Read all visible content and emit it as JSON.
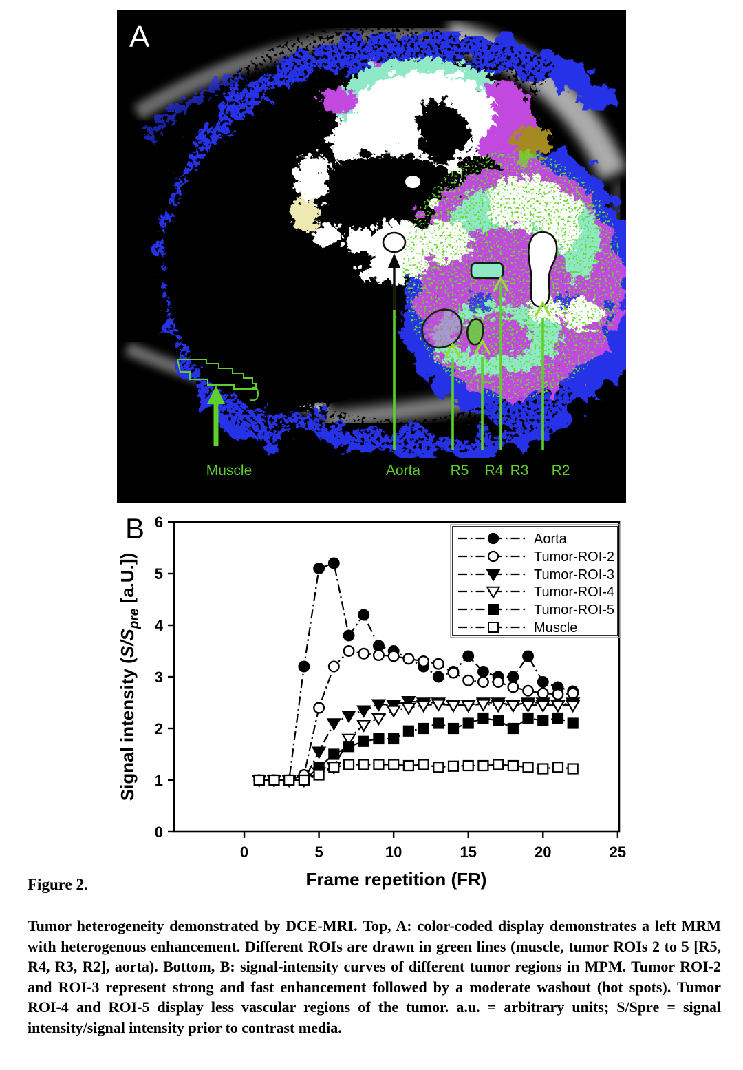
{
  "figure": {
    "label": "Figure 2.",
    "caption": "Tumor heterogeneity demonstrated by DCE-MRI. Top, A: color-coded display demonstrates a left MRM with heterogenous enhancement. Different ROIs are drawn in green lines (muscle, tumor ROIs 2 to 5 [R5, R4, R3, R2], aorta). Bottom, B: signal-intensity curves of different tumor regions in MPM. Tumor ROI-2 and ROI-3 represent strong and fast enhancement followed by a moderate washout (hot spots). Tumor ROI-4 and ROI-5 display less vascular regions of the tumor. a.u. = arbitrary units; S/Spre = signal intensity/signal intensity prior to contrast media."
  },
  "panel_a": {
    "label": "A",
    "annotations": [
      "Muscle",
      "Aorta",
      "R5",
      "R4",
      "R3",
      "R2"
    ],
    "annotation_color": "#5ecf2e",
    "palette": {
      "blue": "#2533e8",
      "cyan": "#8fe8c6",
      "magenta": "#c24ae0",
      "red": "#e32119",
      "green_speckle": "#55d41f",
      "olive": "#a58a20",
      "skin_gray": "#b5b5b5"
    }
  },
  "panel_b": {
    "label": "B",
    "ylabel_parts": {
      "text1": "Signal intensity (",
      "s": "S/S",
      "sub": "pre",
      "text2": " [a.U.])"
    }
  },
  "chart_data": {
    "type": "line",
    "title": "",
    "xlabel": "Frame repetition (FR)",
    "ylabel": "Signal intensity (S/Spre [a.U.])",
    "xlim": [
      -4.7,
      25.1
    ],
    "ylim": [
      0,
      6
    ],
    "xticks": [
      0,
      5,
      10,
      15,
      20,
      25
    ],
    "yticks": [
      0,
      1,
      2,
      3,
      4,
      5,
      6
    ],
    "grid": false,
    "legend_position": "upper right",
    "line_style": "dash-dot",
    "color": "#000000",
    "x": [
      1,
      2,
      3,
      4,
      5,
      6,
      7,
      8,
      9,
      10,
      11,
      12,
      13,
      14,
      15,
      16,
      17,
      18,
      19,
      20,
      21,
      22
    ],
    "series": [
      {
        "name": "Aorta",
        "marker": "circle-filled",
        "values": [
          1.0,
          1.0,
          1.0,
          3.2,
          5.1,
          5.2,
          3.8,
          4.2,
          3.6,
          3.5,
          3.35,
          3.2,
          3.0,
          3.1,
          3.4,
          3.1,
          3.0,
          3.0,
          3.4,
          2.9,
          2.8,
          2.72
        ]
      },
      {
        "name": "Tumor-ROI-2",
        "marker": "circle-open",
        "values": [
          1.0,
          1.0,
          1.0,
          1.1,
          2.4,
          3.2,
          3.5,
          3.45,
          3.42,
          3.4,
          3.35,
          3.3,
          3.25,
          3.08,
          2.93,
          2.9,
          2.9,
          2.8,
          2.73,
          2.68,
          2.66,
          2.68
        ]
      },
      {
        "name": "Tumor-ROI-3",
        "marker": "triangle-filled",
        "values": [
          1.0,
          1.0,
          1.0,
          1.0,
          1.55,
          2.1,
          2.25,
          2.35,
          2.47,
          2.45,
          2.53,
          2.5,
          2.5,
          2.45,
          2.45,
          2.5,
          2.5,
          2.45,
          2.5,
          2.5,
          2.45,
          2.5
        ]
      },
      {
        "name": "Tumor-ROI-4",
        "marker": "triangle-open",
        "values": [
          1.0,
          1.0,
          1.0,
          1.0,
          1.15,
          1.25,
          1.8,
          2.07,
          2.2,
          2.35,
          2.4,
          2.45,
          2.47,
          2.45,
          2.45,
          2.47,
          2.45,
          2.45,
          2.45,
          2.45,
          2.45,
          2.45
        ]
      },
      {
        "name": "Tumor-ROI-5",
        "marker": "square-filled",
        "values": [
          1.0,
          1.0,
          1.0,
          1.0,
          1.25,
          1.5,
          1.65,
          1.75,
          1.8,
          1.8,
          1.95,
          2.0,
          2.1,
          2.0,
          2.1,
          2.2,
          2.15,
          2.0,
          2.2,
          2.15,
          2.2,
          2.1
        ]
      },
      {
        "name": "Muscle",
        "marker": "square-open",
        "values": [
          1.0,
          1.0,
          1.0,
          1.0,
          1.1,
          1.25,
          1.3,
          1.3,
          1.3,
          1.3,
          1.28,
          1.3,
          1.25,
          1.27,
          1.28,
          1.28,
          1.3,
          1.28,
          1.25,
          1.22,
          1.25,
          1.22
        ]
      }
    ]
  }
}
